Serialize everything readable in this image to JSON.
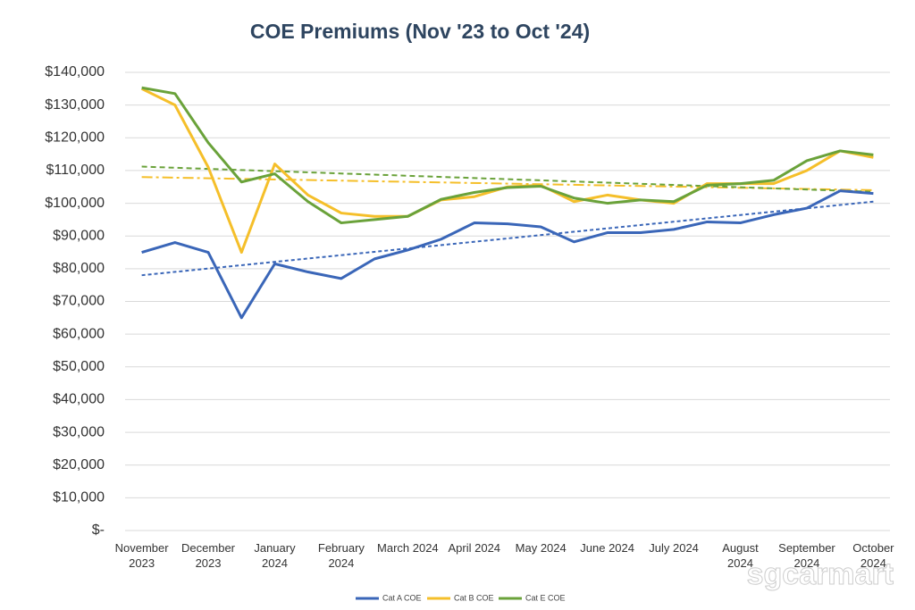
{
  "chart_data": {
    "type": "line",
    "title": "COE Premiums (Nov '23 to Oct '24)",
    "categories": [
      "November 2023",
      null,
      "December 2023",
      null,
      "January 2024",
      null,
      "February 2024",
      null,
      "March 2024",
      null,
      "April 2024",
      null,
      "May 2024",
      null,
      "June 2024",
      null,
      "July 2024",
      null,
      "August 2024",
      null,
      "September 2024",
      null,
      "October 2024"
    ],
    "series": [
      {
        "name": "Cat A COE",
        "color": "#3a66b8",
        "values": [
          85000,
          88000,
          85000,
          65000,
          81500,
          79000,
          77000,
          83000,
          85700,
          89000,
          94000,
          93700,
          92800,
          88200,
          91000,
          91000,
          92000,
          94300,
          94000,
          96500,
          98500,
          103800,
          103000
        ],
        "trend": [
          78000,
          100500
        ]
      },
      {
        "name": "Cat B COE",
        "color": "#f5bf2a",
        "values": [
          135000,
          130000,
          111000,
          85000,
          112000,
          102500,
          97000,
          96000,
          96000,
          101000,
          102000,
          105000,
          105500,
          100500,
          102500,
          101000,
          100000,
          106000,
          106000,
          106000,
          110000,
          116000,
          114000
        ],
        "trend": [
          108000,
          104000
        ]
      },
      {
        "name": "Cat E COE",
        "color": "#6aa23a",
        "values": [
          135300,
          133500,
          118500,
          106500,
          109000,
          100500,
          94000,
          95000,
          96000,
          101200,
          103300,
          104800,
          105200,
          101600,
          100000,
          101000,
          100500,
          105500,
          106000,
          107000,
          113000,
          116000,
          114800
        ],
        "trend": [
          111200,
          103500
        ]
      }
    ],
    "ylim": [
      0,
      140000
    ],
    "yticks": [
      {
        "value": 0,
        "label": "$-"
      },
      {
        "value": 10000,
        "label": "$10,000"
      },
      {
        "value": 20000,
        "label": "$20,000"
      },
      {
        "value": 30000,
        "label": "$30,000"
      },
      {
        "value": 40000,
        "label": "$40,000"
      },
      {
        "value": 50000,
        "label": "$50,000"
      },
      {
        "value": 60000,
        "label": "$60,000"
      },
      {
        "value": 70000,
        "label": "$70,000"
      },
      {
        "value": 80000,
        "label": "$80,000"
      },
      {
        "value": 90000,
        "label": "$90,000"
      },
      {
        "value": 100000,
        "label": "$100,000"
      },
      {
        "value": 110000,
        "label": "$110,000"
      },
      {
        "value": 120000,
        "label": "$120,000"
      },
      {
        "value": 130000,
        "label": "$130,000"
      },
      {
        "value": 140000,
        "label": "$140,000"
      }
    ],
    "grid": true,
    "legend": "bottom",
    "watermark": "sgcarmart"
  }
}
